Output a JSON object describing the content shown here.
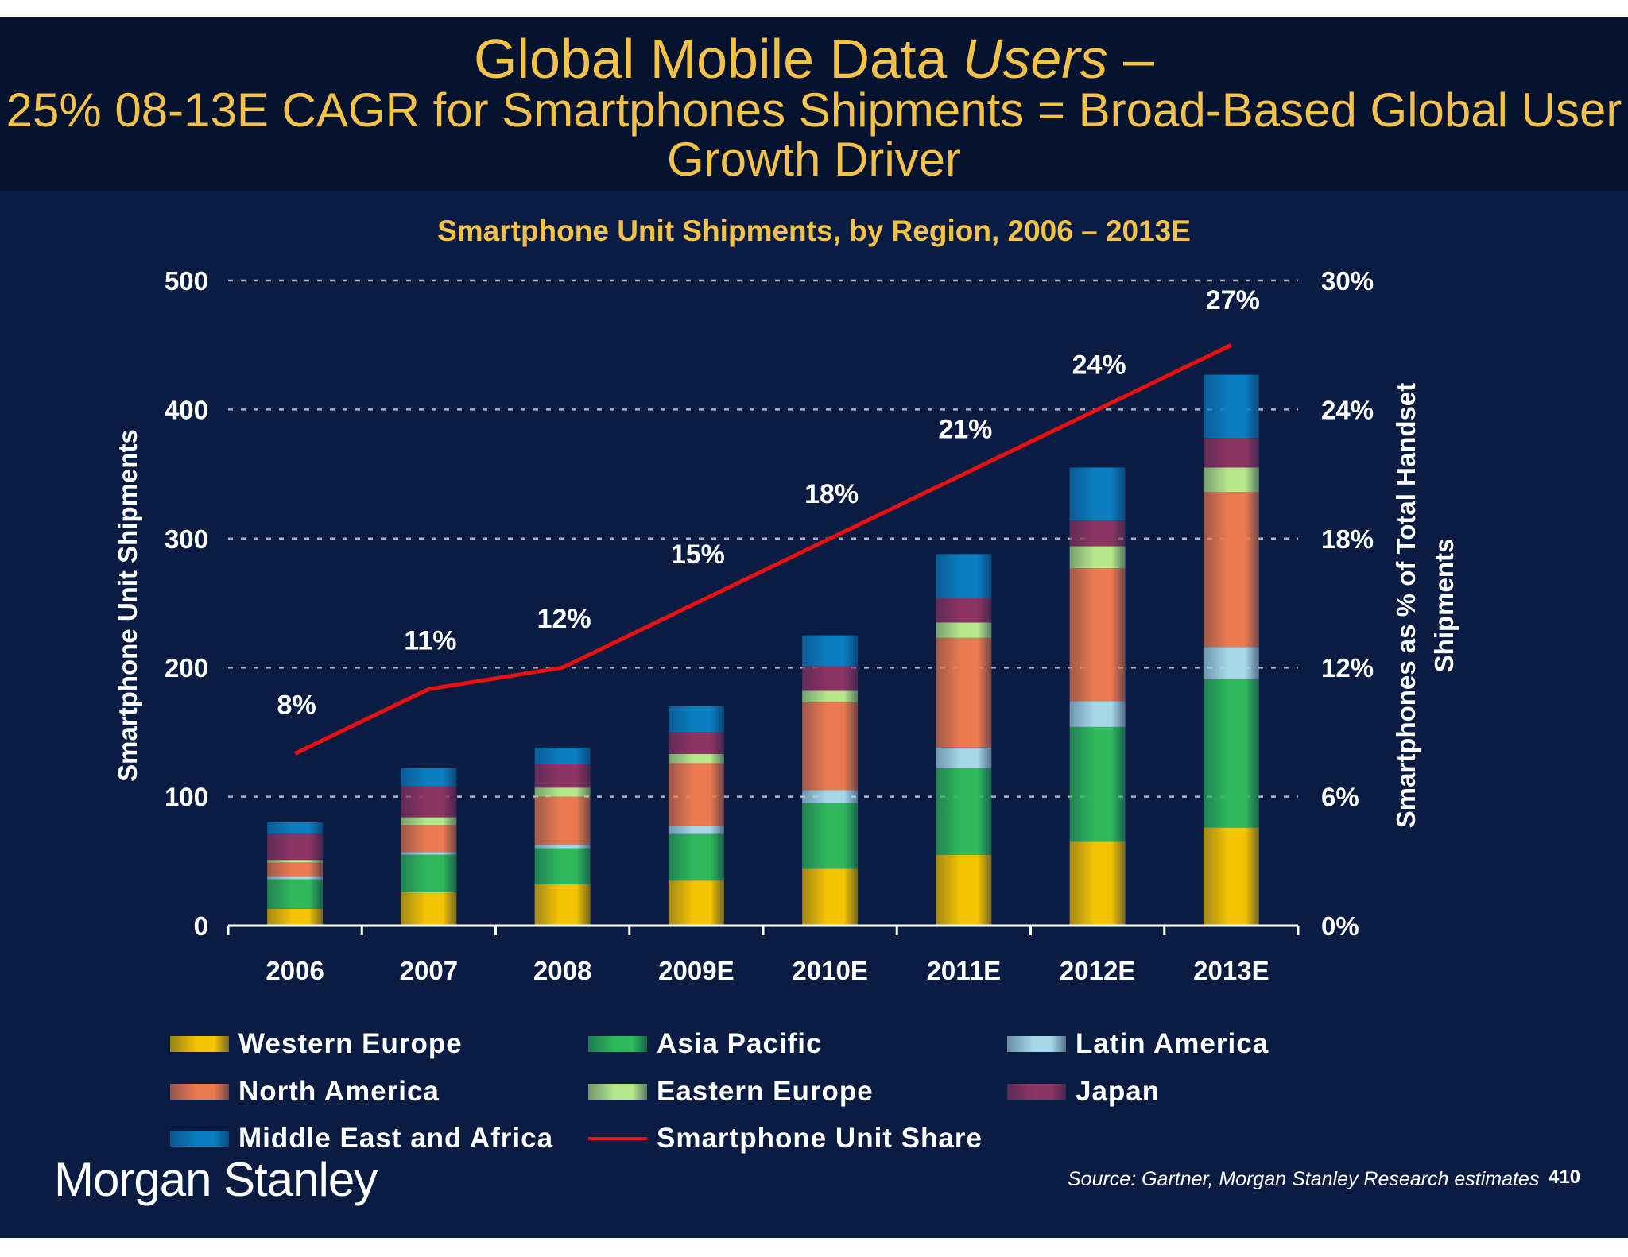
{
  "header": {
    "title_plain": "Global Mobile Data ",
    "title_italic": "Users",
    "title_end": " –",
    "subtitle": "25% 08-13E CAGR for Smartphones Shipments = Broad-Based Global User Growth Driver"
  },
  "chart_data": {
    "type": "bar",
    "stacked": true,
    "title": "Smartphone Unit Shipments, by Region, 2006 – 2013E",
    "ylabel": "Smartphone Unit Shipments",
    "y2label": "Smartphones as % of Total Handset Shipments",
    "ylim": [
      0,
      500
    ],
    "y2lim": [
      0,
      30
    ],
    "yticks": [
      "0",
      "100",
      "200",
      "300",
      "400",
      "500"
    ],
    "y2ticks": [
      "0%",
      "6%",
      "12%",
      "18%",
      "24%",
      "30%"
    ],
    "grid": true,
    "legend": "bottom",
    "categories": [
      "2006",
      "2007",
      "2008",
      "2009E",
      "2010E",
      "2011E",
      "2012E",
      "2013E"
    ],
    "series": [
      {
        "name": "Western Europe",
        "color": "#f5c400",
        "values": [
          13,
          26,
          32,
          35,
          44,
          55,
          65,
          76
        ]
      },
      {
        "name": "Asia Pacific",
        "color": "#2fb95c",
        "values": [
          23,
          29,
          28,
          36,
          51,
          67,
          89,
          115
        ]
      },
      {
        "name": "Latin America",
        "color": "#a7d8e8",
        "values": [
          2,
          2,
          3,
          6,
          10,
          16,
          20,
          25
        ]
      },
      {
        "name": "North America",
        "color": "#ec7a50",
        "values": [
          11,
          21,
          37,
          49,
          68,
          85,
          103,
          120
        ]
      },
      {
        "name": "Eastern Europe",
        "color": "#b5e88a",
        "values": [
          2,
          6,
          7,
          7,
          9,
          12,
          17,
          19
        ]
      },
      {
        "name": "Japan",
        "color": "#8e3462",
        "values": [
          20,
          24,
          18,
          17,
          19,
          19,
          20,
          23
        ]
      },
      {
        "name": "Middle East and Africa",
        "color": "#0a7ec0",
        "values": [
          9,
          14,
          13,
          20,
          24,
          34,
          41,
          49
        ]
      }
    ],
    "line": {
      "name": "Smartphone Unit Share",
      "color": "#e81010",
      "axis": "right",
      "values": [
        8,
        11,
        12,
        15,
        18,
        21,
        24,
        27
      ],
      "labels": [
        "8%",
        "11%",
        "12%",
        "15%",
        "18%",
        "21%",
        "24%",
        "27%"
      ]
    }
  },
  "footer": {
    "logo": "Morgan Stanley",
    "source": "Source: Gartner, Morgan Stanley Research estimates",
    "page": "410"
  }
}
